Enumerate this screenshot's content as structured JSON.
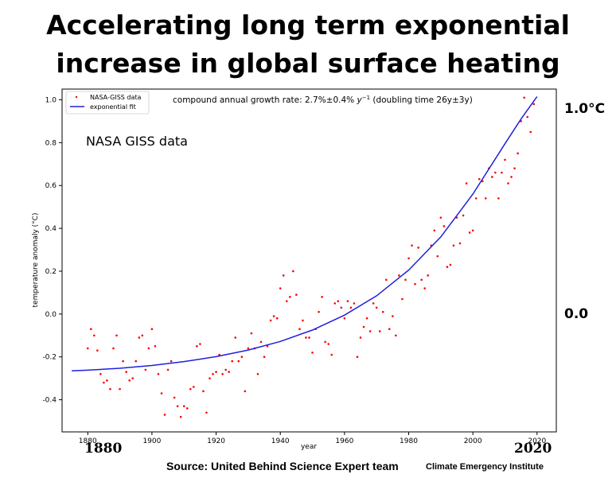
{
  "title_line1": "Accelerating long term exponential",
  "title_line2": "increase in global surface heating",
  "right_label_top": "1.0°C",
  "right_label_mid": "0.0",
  "year_start": "1880",
  "year_end": "2020",
  "source": "Source: United Behind Science Expert team",
  "institute": "Climate Emergency Institute",
  "colors": {
    "points": "#ff0000",
    "fit": "#1f1fdd",
    "axes": "#000000"
  },
  "chart_data": {
    "type": "scatter",
    "annotation_inside": "NASA GISS data",
    "growth_rate_prefix": "compound annual growth rate: 2.7%±0.4% ",
    "growth_rate_unit": "y",
    "growth_rate_exp": "−1",
    "growth_rate_suffix": " (doubling time 26y±3y)",
    "xlabel": "year",
    "ylabel": "temperature anomaly (°C)",
    "xlim": [
      1872,
      2026
    ],
    "ylim": [
      -0.55,
      1.05
    ],
    "xticks": [
      1880,
      1900,
      1920,
      1940,
      1960,
      1980,
      2000,
      2020
    ],
    "yticks": [
      -0.4,
      -0.2,
      0.0,
      0.2,
      0.4,
      0.6,
      0.8,
      1.0
    ],
    "legend": {
      "placement": "top-left",
      "entries": [
        "NASA-GISS data",
        "exponential fit"
      ]
    },
    "series": [
      {
        "name": "NASA-GISS data",
        "kind": "points",
        "x": [
          1880,
          1881,
          1882,
          1883,
          1884,
          1885,
          1886,
          1887,
          1888,
          1889,
          1890,
          1891,
          1892,
          1893,
          1894,
          1895,
          1896,
          1897,
          1898,
          1899,
          1900,
          1901,
          1902,
          1903,
          1904,
          1905,
          1906,
          1907,
          1908,
          1909,
          1910,
          1911,
          1912,
          1913,
          1914,
          1915,
          1916,
          1917,
          1918,
          1919,
          1920,
          1921,
          1922,
          1923,
          1924,
          1925,
          1926,
          1927,
          1928,
          1929,
          1930,
          1931,
          1932,
          1933,
          1934,
          1935,
          1936,
          1937,
          1938,
          1939,
          1940,
          1941,
          1942,
          1943,
          1944,
          1945,
          1946,
          1947,
          1948,
          1949,
          1950,
          1951,
          1952,
          1953,
          1954,
          1955,
          1956,
          1957,
          1958,
          1959,
          1960,
          1961,
          1962,
          1963,
          1964,
          1965,
          1966,
          1967,
          1968,
          1969,
          1970,
          1971,
          1972,
          1973,
          1974,
          1975,
          1976,
          1977,
          1978,
          1979,
          1980,
          1981,
          1982,
          1983,
          1984,
          1985,
          1986,
          1987,
          1988,
          1989,
          1990,
          1991,
          1992,
          1993,
          1994,
          1995,
          1996,
          1997,
          1998,
          1999,
          2000,
          2001,
          2002,
          2003,
          2004,
          2005,
          2006,
          2007,
          2008,
          2009,
          2010,
          2011,
          2012,
          2013,
          2014,
          2015,
          2016,
          2017,
          2018,
          2019
        ],
        "y": [
          -0.16,
          -0.07,
          -0.1,
          -0.17,
          -0.28,
          -0.32,
          -0.31,
          -0.35,
          -0.16,
          -0.1,
          -0.35,
          -0.22,
          -0.27,
          -0.31,
          -0.3,
          -0.22,
          -0.11,
          -0.1,
          -0.26,
          -0.16,
          -0.07,
          -0.15,
          -0.28,
          -0.37,
          -0.47,
          -0.26,
          -0.22,
          -0.39,
          -0.43,
          -0.48,
          -0.43,
          -0.44,
          -0.35,
          -0.34,
          -0.15,
          -0.14,
          -0.36,
          -0.46,
          -0.3,
          -0.28,
          -0.27,
          -0.19,
          -0.28,
          -0.26,
          -0.27,
          -0.22,
          -0.11,
          -0.22,
          -0.2,
          -0.36,
          -0.16,
          -0.09,
          -0.16,
          -0.28,
          -0.13,
          -0.2,
          -0.15,
          -0.03,
          -0.01,
          -0.02,
          0.12,
          0.18,
          0.06,
          0.08,
          0.2,
          0.09,
          -0.07,
          -0.03,
          -0.11,
          -0.11,
          -0.18,
          -0.07,
          0.01,
          0.08,
          -0.13,
          -0.14,
          -0.19,
          0.05,
          0.06,
          0.03,
          -0.02,
          0.06,
          0.03,
          0.05,
          -0.2,
          -0.11,
          -0.06,
          -0.02,
          -0.08,
          0.05,
          0.03,
          -0.08,
          0.01,
          0.16,
          -0.07,
          -0.01,
          -0.1,
          0.18,
          0.07,
          0.16,
          0.26,
          0.32,
          0.14,
          0.31,
          0.16,
          0.12,
          0.18,
          0.32,
          0.39,
          0.27,
          0.45,
          0.41,
          0.22,
          0.23,
          0.32,
          0.45,
          0.33,
          0.46,
          0.61,
          0.38,
          0.39,
          0.54,
          0.63,
          0.62,
          0.54,
          0.68,
          0.64,
          0.66,
          0.54,
          0.66,
          0.72,
          0.61,
          0.64,
          0.68,
          0.75,
          0.9,
          1.01,
          0.92,
          0.85,
          0.98
        ]
      },
      {
        "name": "exponential fit",
        "kind": "line",
        "x": [
          1875,
          1880,
          1890,
          1900,
          1910,
          1920,
          1930,
          1940,
          1950,
          1960,
          1970,
          1980,
          1990,
          2000,
          2010,
          2015,
          2020
        ],
        "y": [
          -0.265,
          -0.262,
          -0.253,
          -0.24,
          -0.222,
          -0.199,
          -0.168,
          -0.128,
          -0.075,
          -0.005,
          0.085,
          0.205,
          0.36,
          0.56,
          0.795,
          0.91,
          1.015
        ]
      }
    ]
  }
}
